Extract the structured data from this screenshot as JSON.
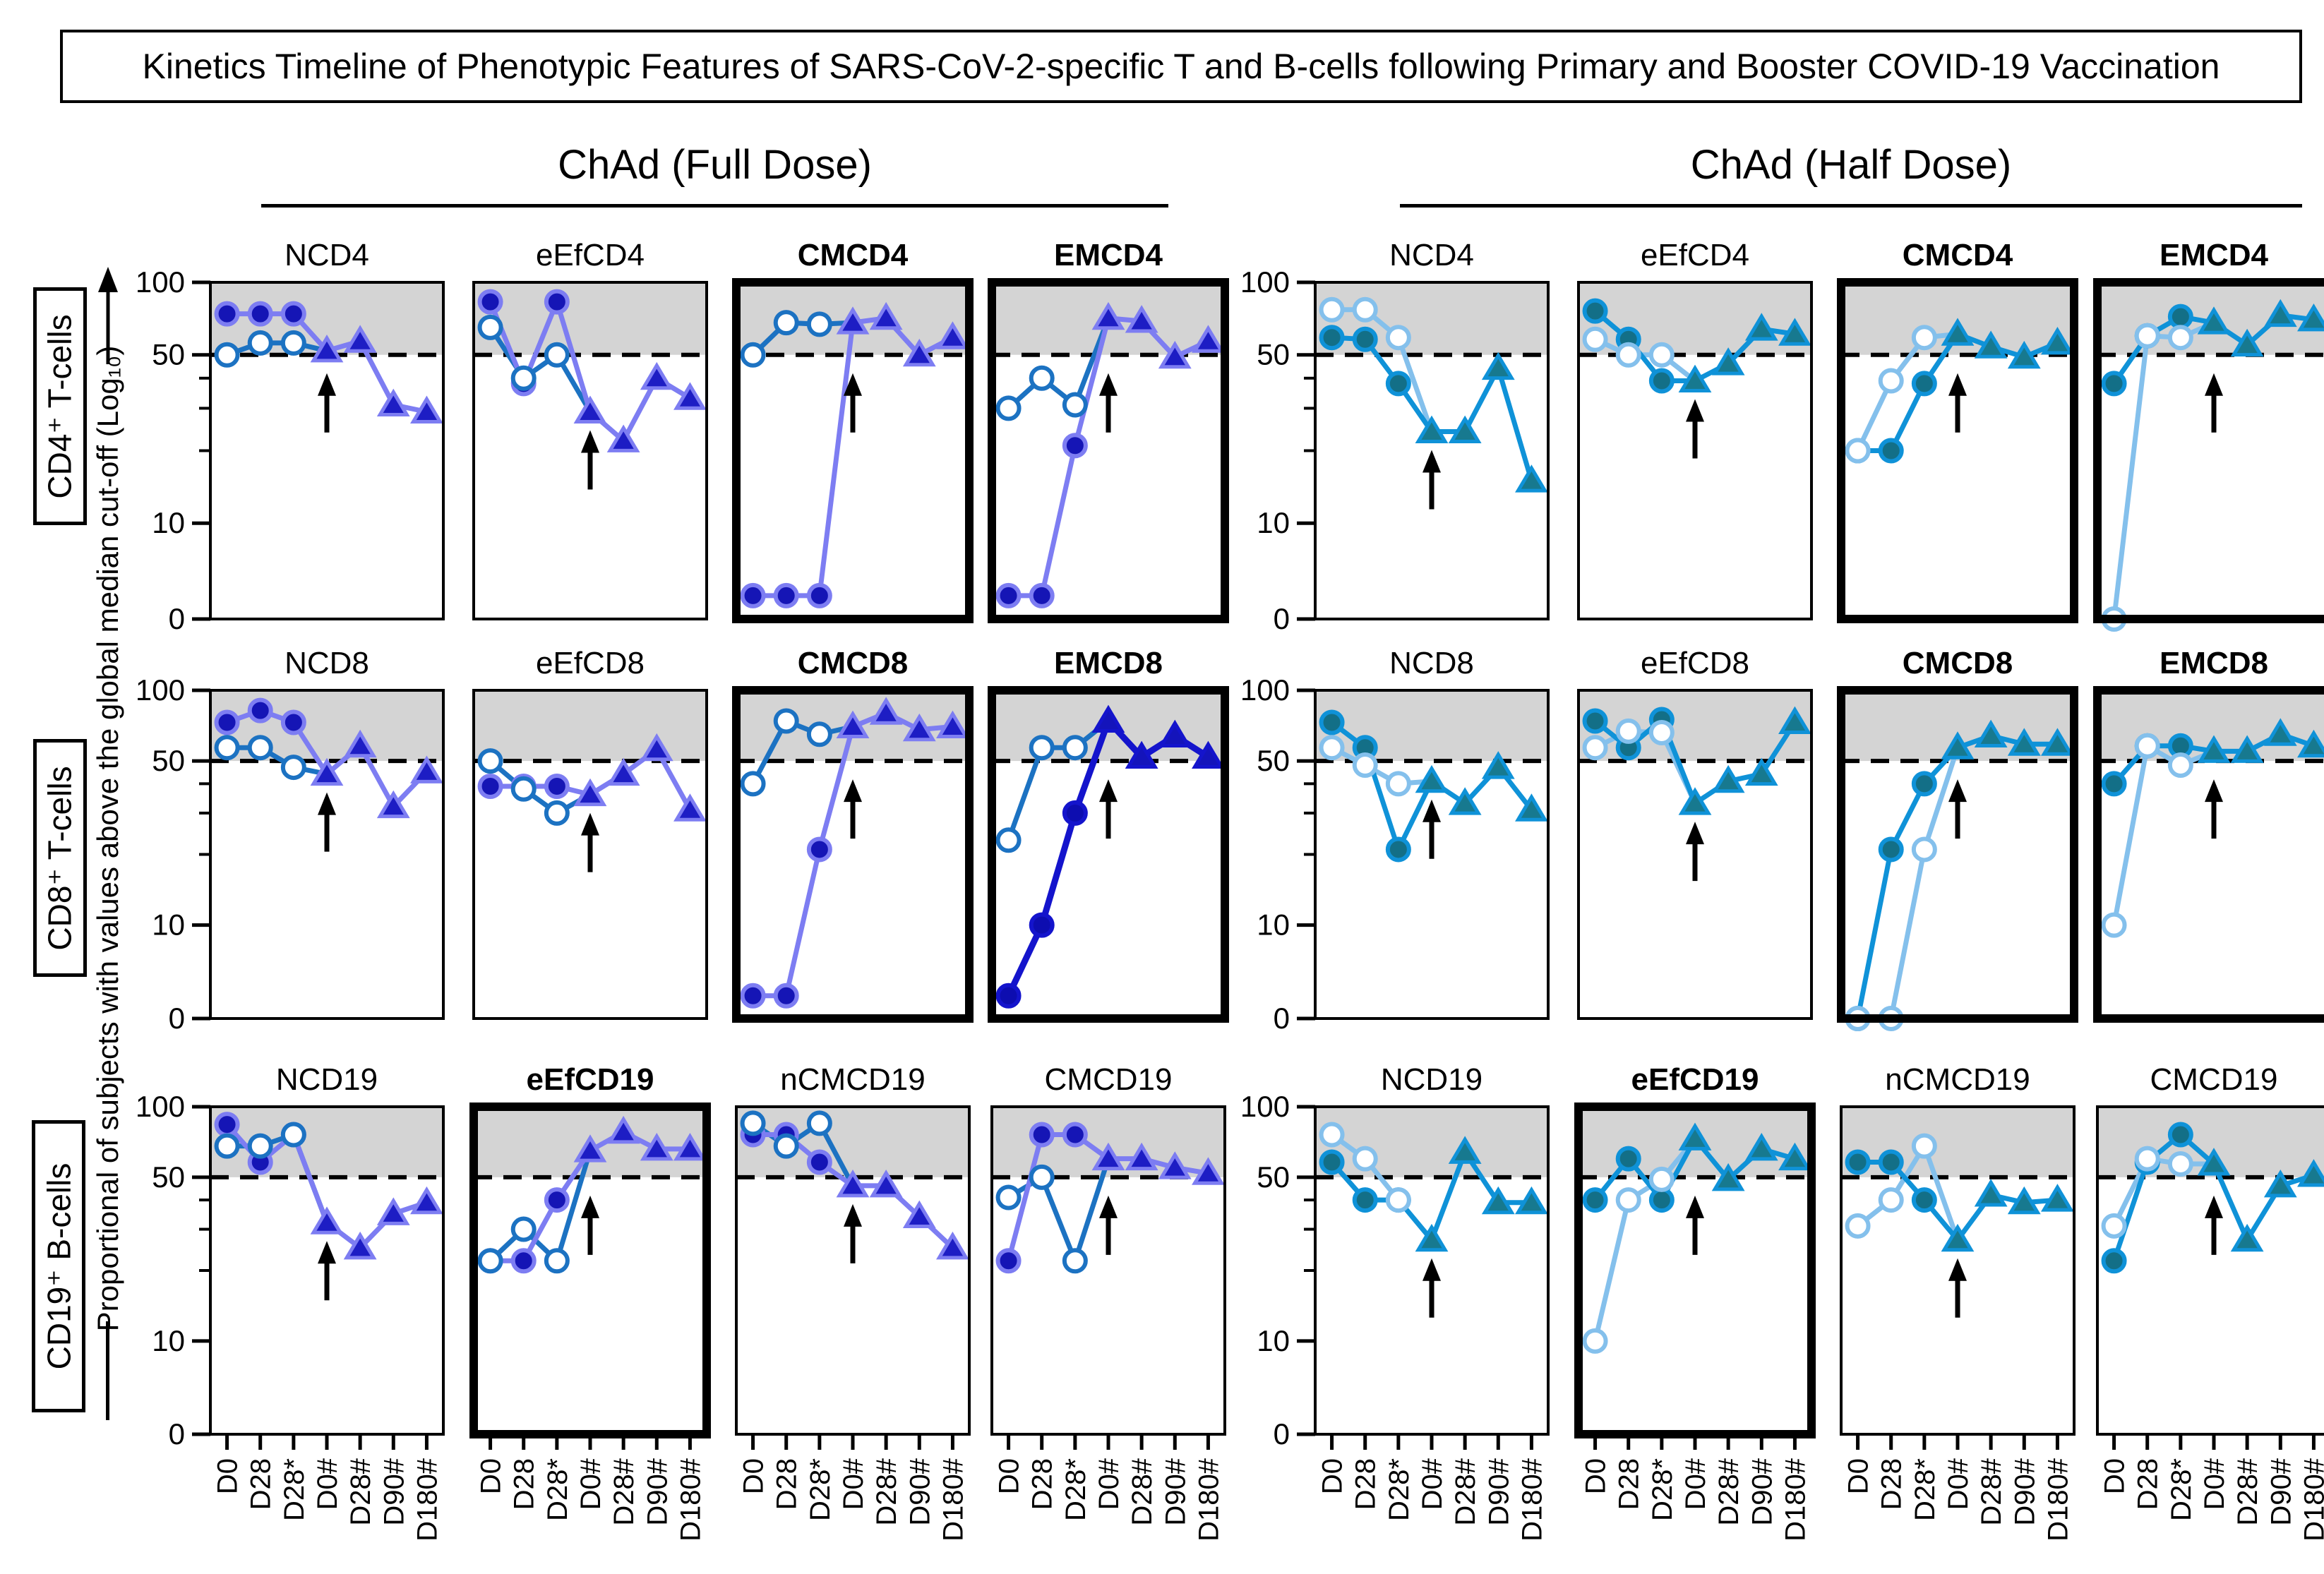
{
  "title": "Kinetics Timeline of Phenotypic Features of SARS-CoV-2-specific T and B-cells following Primary and Booster COVID-19 Vaccination",
  "groups": [
    {
      "label": "ChAd (Full Dose)"
    },
    {
      "label": "ChAd (Half Dose)"
    }
  ],
  "row_labels": [
    "CD4⁺ T-cells",
    "CD8⁺ T-cells",
    "CD19⁺ B-cells"
  ],
  "y_axis": {
    "label": "Proportional of subjects with values above the global median cut-off (Log₁₀)",
    "ticks": [
      "100",
      "50",
      "10",
      "0"
    ]
  },
  "x_labels": [
    "D0",
    "D28",
    "D28*",
    "D0#",
    "D28#",
    "D90#",
    "D180#"
  ],
  "colors": {
    "band": "#d4d4d4",
    "dashed_line": "#000000",
    "fd": {
      "open_line": "#1c72c2",
      "open_fill": "#ffffff",
      "filled_line": "#7d7df2",
      "filled_fill": "#1515b5",
      "tri_line": "#7d7df2",
      "tri_fill": "#1d1dc4"
    },
    "fd_dark": {
      "open_line": "#1c72c2",
      "open_fill": "#ffffff",
      "filled_line": "#1414cc",
      "filled_fill": "#0d0db0",
      "tri_line": "#1414cc",
      "tri_fill": "#1414bb"
    },
    "hd": {
      "open_line": "#84c0ec",
      "open_fill": "#ffffff",
      "filled_line": "#0f92d8",
      "filled_fill": "#136f87",
      "tri_line": "#0f92d8",
      "tri_fill": "#17798f"
    }
  },
  "chart_data": {
    "type": "line",
    "note": "24 small-multiple panels; y log-scale 0-100 with dashed cutoff at 50 and gray shading above 50; circles = primary-series timepoints (D0, D28, D28*), triangles = booster timepoints (D0#, D28#, D90#, D180#); black up-arrow marks booster at D0#",
    "x_categories": [
      "D0",
      "D28",
      "D28*",
      "D0#",
      "D28#",
      "D90#",
      "D180#"
    ],
    "ylim": [
      4,
      100
    ],
    "y_ticks_labeled": [
      100,
      50,
      10,
      0
    ],
    "y_minor_ticks": [
      40,
      30,
      20
    ],
    "cutoff": 50,
    "panels": [
      {
        "title": "NCD4",
        "group": "ChAd (Full Dose)",
        "row": "CD4+ T-cells",
        "bold": false,
        "scheme": "fd",
        "open": [
          50,
          56,
          56
        ],
        "filled": [
          74,
          74,
          74
        ],
        "tri": [
          52,
          57,
          31,
          29
        ]
      },
      {
        "title": "eEfCD4",
        "group": "ChAd (Full Dose)",
        "row": "CD4+ T-cells",
        "bold": false,
        "scheme": "fd",
        "open": [
          65,
          40,
          50
        ],
        "filled": [
          83,
          38,
          83
        ],
        "tri": [
          29,
          22,
          40,
          33
        ]
      },
      {
        "title": "CMCD4",
        "group": "ChAd (Full Dose)",
        "row": "CD4+ T-cells",
        "bold": true,
        "scheme": "fd",
        "open": [
          50,
          68,
          67
        ],
        "filled": [
          5,
          5,
          5
        ],
        "tri": [
          68,
          71,
          50,
          59
        ]
      },
      {
        "title": "EMCD4",
        "group": "ChAd (Full Dose)",
        "row": "CD4+ T-cells",
        "bold": true,
        "scheme": "fd",
        "open": [
          30,
          40,
          31
        ],
        "filled": [
          5,
          5,
          21
        ],
        "tri": [
          71,
          69,
          49,
          57
        ]
      },
      {
        "title": "NCD4",
        "group": "ChAd (Half Dose)",
        "row": "CD4+ T-cells",
        "bold": false,
        "scheme": "hd",
        "open": [
          77,
          77,
          59
        ],
        "filled": [
          59,
          58,
          38
        ],
        "tri": [
          24,
          24,
          44,
          15
        ]
      },
      {
        "title": "eEfCD4",
        "group": "ChAd (Half Dose)",
        "row": "CD4+ T-cells",
        "bold": false,
        "scheme": "hd",
        "open": [
          58,
          50,
          50
        ],
        "filled": [
          76,
          58,
          39
        ],
        "tri": [
          39,
          46,
          64,
          61
        ]
      },
      {
        "title": "CMCD4",
        "group": "ChAd (Half Dose)",
        "row": "CD4+ T-cells",
        "bold": true,
        "scheme": "hd",
        "open": [
          20,
          39,
          59
        ],
        "filled": [
          20,
          20,
          38
        ],
        "tri": [
          61,
          54,
          49,
          56
        ]
      },
      {
        "title": "EMCD4",
        "group": "ChAd (Half Dose)",
        "row": "CD4+ T-cells",
        "bold": true,
        "scheme": "hd",
        "open": [
          4,
          60,
          59
        ],
        "filled": [
          38,
          60,
          72
        ],
        "tri": [
          68,
          55,
          73,
          70
        ]
      },
      {
        "title": "NCD8",
        "group": "ChAd (Full Dose)",
        "row": "CD8+ T-cells",
        "bold": false,
        "scheme": "fd",
        "open": [
          57,
          57,
          47
        ],
        "filled": [
          73,
          82,
          73
        ],
        "tri": [
          44,
          58,
          32,
          45
        ]
      },
      {
        "title": "eEfCD8",
        "group": "ChAd (Full Dose)",
        "row": "CD8+ T-cells",
        "bold": false,
        "scheme": "fd",
        "open": [
          50,
          38,
          30
        ],
        "filled": [
          39,
          39,
          39
        ],
        "tri": [
          36,
          44,
          56,
          31
        ]
      },
      {
        "title": "CMCD8",
        "group": "ChAd (Full Dose)",
        "row": "CD8+ T-cells",
        "bold": true,
        "scheme": "fd",
        "open": [
          40,
          74,
          65
        ],
        "filled": [
          5,
          5,
          21
        ],
        "tri": [
          70,
          80,
          68,
          70
        ]
      },
      {
        "title": "EMCD8",
        "group": "ChAd (Full Dose)",
        "row": "CD8+ T-cells",
        "bold": true,
        "scheme": "fd_dark",
        "open": [
          23,
          57,
          57
        ],
        "filled": [
          5,
          10,
          30
        ],
        "tri": [
          74,
          52,
          64,
          52
        ]
      },
      {
        "title": "NCD8",
        "group": "ChAd (Half Dose)",
        "row": "CD8+ T-cells",
        "bold": false,
        "scheme": "hd",
        "open": [
          57,
          48,
          40
        ],
        "filled": [
          73,
          57,
          21
        ],
        "tri": [
          41,
          33,
          47,
          31
        ]
      },
      {
        "title": "eEfCD8",
        "group": "ChAd (Half Dose)",
        "row": "CD8+ T-cells",
        "bold": false,
        "scheme": "hd",
        "open": [
          57,
          67,
          66
        ],
        "filled": [
          74,
          57,
          75
        ],
        "tri": [
          33,
          41,
          44,
          73
        ]
      },
      {
        "title": "CMCD8",
        "group": "ChAd (Half Dose)",
        "row": "CD8+ T-cells",
        "bold": true,
        "scheme": "hd",
        "open": [
          4,
          4,
          21
        ],
        "filled": [
          4,
          21,
          40
        ],
        "tri": [
          57,
          64,
          59,
          59
        ]
      },
      {
        "title": "EMCD8",
        "group": "ChAd (Half Dose)",
        "row": "CD8+ T-cells",
        "bold": true,
        "scheme": "hd",
        "open": [
          10,
          58,
          48
        ],
        "filled": [
          40,
          58,
          58
        ],
        "tri": [
          55,
          55,
          65,
          58
        ]
      },
      {
        "title": "NCD19",
        "group": "ChAd (Full Dose)",
        "row": "CD19+ B-cells",
        "bold": false,
        "scheme": "fd",
        "open": [
          68,
          68,
          76
        ],
        "filled": [
          84,
          58,
          76
        ],
        "tri": [
          32,
          25,
          35,
          39
        ]
      },
      {
        "title": "eEfCD19",
        "group": "ChAd (Full Dose)",
        "row": "CD19+ B-cells",
        "bold": true,
        "scheme": "fd",
        "open": [
          22,
          30,
          22
        ],
        "filled": [
          22,
          22,
          40
        ],
        "tri": [
          65,
          78,
          66,
          66
        ]
      },
      {
        "title": "nCMCD19",
        "group": "ChAd (Full Dose)",
        "row": "CD19+ B-cells",
        "bold": false,
        "scheme": "fd",
        "open": [
          85,
          68,
          85
        ],
        "filled": [
          76,
          76,
          58
        ],
        "tri": [
          46,
          46,
          34,
          25
        ]
      },
      {
        "title": "CMCD19",
        "group": "ChAd (Full Dose)",
        "row": "CD19+ B-cells",
        "bold": false,
        "scheme": "fd",
        "open": [
          41,
          50,
          22
        ],
        "filled": [
          22,
          76,
          76
        ],
        "tri": [
          60,
          60,
          55,
          52
        ]
      },
      {
        "title": "NCD19",
        "group": "ChAd (Half Dose)",
        "row": "CD19+ B-cells",
        "bold": false,
        "scheme": "hd",
        "open": [
          76,
          60,
          40
        ],
        "filled": [
          58,
          40,
          40
        ],
        "tri": [
          27,
          64,
          39,
          39
        ]
      },
      {
        "title": "eEfCD19",
        "group": "ChAd (Half Dose)",
        "row": "CD19+ B-cells",
        "bold": true,
        "scheme": "hd",
        "open": [
          10,
          40,
          49
        ],
        "filled": [
          40,
          60,
          40
        ],
        "tri": [
          73,
          49,
          66,
          60
        ]
      },
      {
        "title": "nCMCD19",
        "group": "ChAd (Half Dose)",
        "row": "CD19+ B-cells",
        "bold": false,
        "scheme": "hd",
        "open": [
          31,
          40,
          68
        ],
        "filled": [
          58,
          58,
          40
        ],
        "tri": [
          27,
          42,
          39,
          40
        ]
      },
      {
        "title": "CMCD19",
        "group": "ChAd (Half Dose)",
        "row": "CD19+ B-cells",
        "bold": false,
        "scheme": "hd",
        "open": [
          31,
          60,
          57
        ],
        "filled": [
          22,
          58,
          76
        ],
        "tri": [
          57,
          27,
          46,
          51
        ]
      }
    ]
  }
}
